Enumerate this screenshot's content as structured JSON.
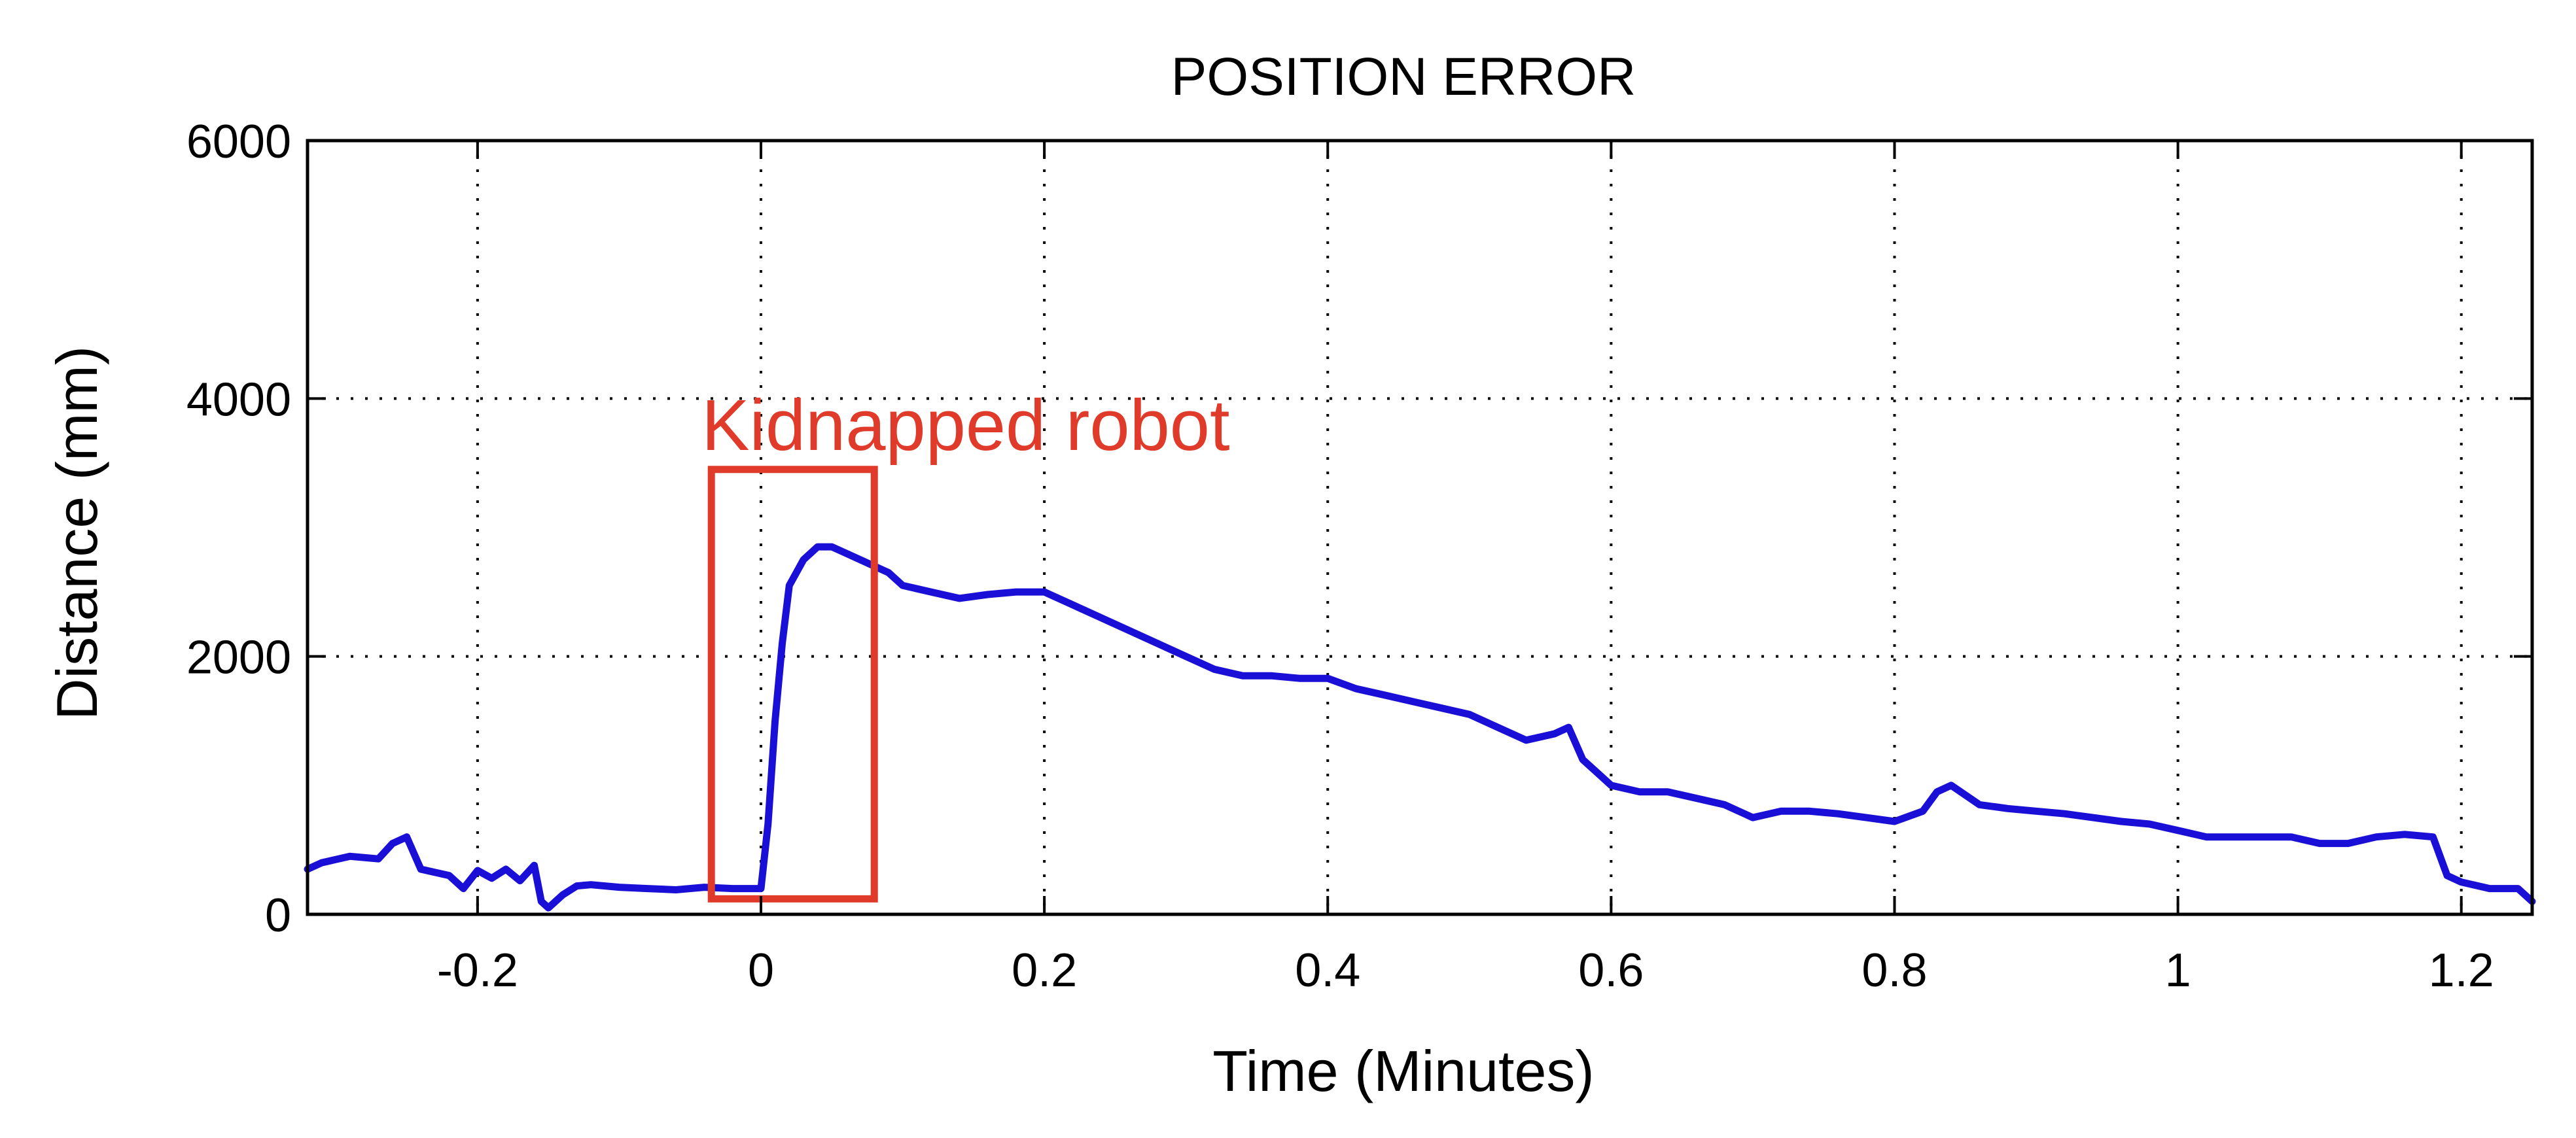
{
  "chart_data": {
    "type": "line",
    "title": "POSITION ERROR",
    "xlabel": "Time (Minutes)",
    "ylabel": "Distance (mm)",
    "xlim": [
      -0.32,
      1.25
    ],
    "ylim": [
      0,
      6000
    ],
    "xticks": [
      -0.2,
      0,
      0.2,
      0.4,
      0.6,
      0.8,
      1,
      1.2
    ],
    "xtick_labels": [
      "-0.2",
      "0",
      "0.2",
      "0.4",
      "0.6",
      "0.8",
      "1",
      "1.2"
    ],
    "yticks": [
      0,
      2000,
      4000,
      6000
    ],
    "ytick_labels": [
      "0",
      "2000",
      "4000",
      "6000"
    ],
    "grid": true,
    "grid_style": "dotted",
    "series": [
      {
        "color": "#1a0fd6",
        "x": [
          -0.32,
          -0.31,
          -0.29,
          -0.27,
          -0.26,
          -0.25,
          -0.24,
          -0.22,
          -0.21,
          -0.2,
          -0.19,
          -0.18,
          -0.17,
          -0.16,
          -0.155,
          -0.15,
          -0.14,
          -0.13,
          -0.12,
          -0.1,
          -0.08,
          -0.06,
          -0.04,
          -0.02,
          -0.01,
          0.0,
          0.005,
          0.01,
          0.015,
          0.02,
          0.03,
          0.04,
          0.05,
          0.06,
          0.07,
          0.08,
          0.09,
          0.1,
          0.12,
          0.14,
          0.16,
          0.18,
          0.2,
          0.22,
          0.24,
          0.26,
          0.28,
          0.3,
          0.32,
          0.34,
          0.36,
          0.38,
          0.4,
          0.42,
          0.44,
          0.46,
          0.48,
          0.5,
          0.52,
          0.54,
          0.56,
          0.57,
          0.58,
          0.59,
          0.6,
          0.62,
          0.64,
          0.66,
          0.68,
          0.7,
          0.72,
          0.74,
          0.76,
          0.78,
          0.8,
          0.82,
          0.83,
          0.84,
          0.86,
          0.88,
          0.9,
          0.92,
          0.94,
          0.96,
          0.98,
          1.0,
          1.02,
          1.04,
          1.06,
          1.08,
          1.1,
          1.12,
          1.14,
          1.16,
          1.18,
          1.19,
          1.2,
          1.22,
          1.24,
          1.25
        ],
        "y": [
          350,
          400,
          450,
          430,
          550,
          600,
          350,
          300,
          200,
          340,
          280,
          350,
          260,
          380,
          100,
          50,
          150,
          220,
          230,
          210,
          200,
          190,
          210,
          200,
          200,
          200,
          700,
          1500,
          2100,
          2550,
          2750,
          2850,
          2850,
          2800,
          2750,
          2700,
          2650,
          2550,
          2500,
          2450,
          2480,
          2500,
          2500,
          2400,
          2300,
          2200,
          2100,
          2000,
          1900,
          1850,
          1850,
          1830,
          1830,
          1750,
          1700,
          1650,
          1600,
          1550,
          1450,
          1350,
          1400,
          1450,
          1200,
          1100,
          1000,
          950,
          950,
          900,
          850,
          750,
          800,
          800,
          780,
          750,
          720,
          800,
          950,
          1000,
          850,
          820,
          800,
          780,
          750,
          720,
          700,
          650,
          600,
          600,
          600,
          600,
          550,
          550,
          600,
          620,
          600,
          300,
          250,
          200,
          200,
          100
        ]
      }
    ],
    "annotations": [
      {
        "text": "Kidnapped robot",
        "color": "#e03a2b",
        "box_x": [
          -0.035,
          0.08
        ],
        "box_y": [
          120,
          3450
        ]
      }
    ]
  }
}
